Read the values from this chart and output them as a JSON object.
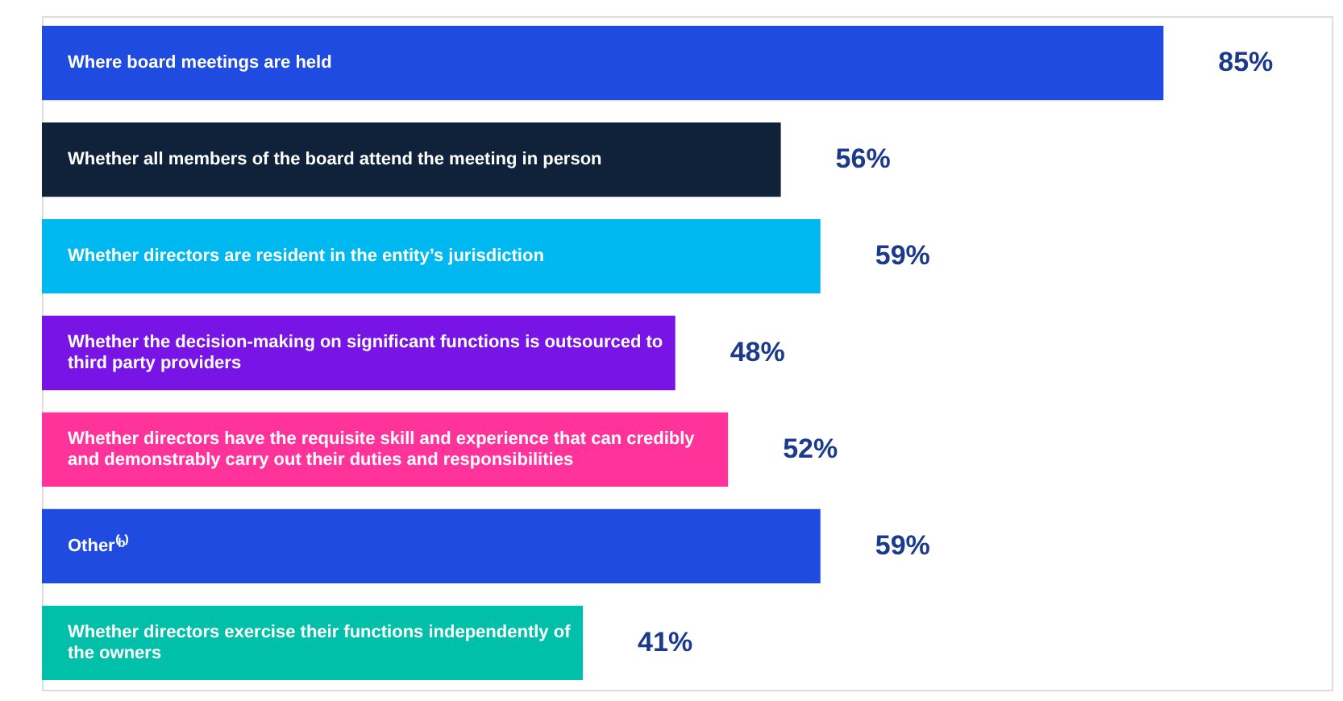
{
  "chart_data": {
    "type": "bar",
    "orientation": "horizontal",
    "categories": [
      "Where board meetings are held",
      "Whether all members of the board attend the meeting in person",
      "Whether directors are resident in the entity’s jurisdiction",
      "Whether the decision-making on significant functions is outsourced to third party providers",
      "Whether directors have the requisite skill and experience that can credibly and demonstrably carry out their duties and responsibilities",
      "Other⁽ᵇ⁾",
      "Whether directors exercise their functions independently of the owners"
    ],
    "values": [
      85,
      56,
      59,
      48,
      52,
      59,
      41
    ],
    "colors": [
      "#1f4be0",
      "#0f2239",
      "#00b8f0",
      "#7814e6",
      "#ff3399",
      "#1f4be0",
      "#00c0aa"
    ],
    "value_labels": [
      "85%",
      "56%",
      "59%",
      "48%",
      "52%",
      "59%",
      "41%"
    ]
  }
}
